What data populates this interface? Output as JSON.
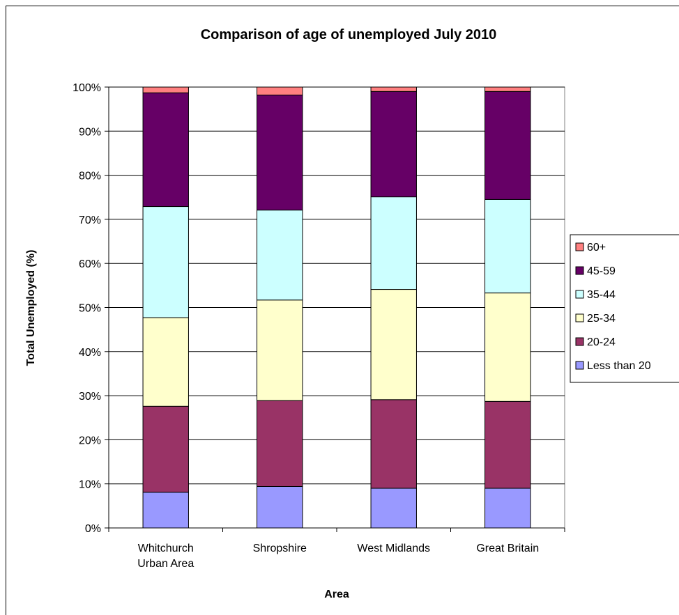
{
  "chart_data": {
    "type": "bar",
    "stacked": "percent",
    "title": "Comparison of age of unemployed July 2010",
    "xlabel": "Area",
    "ylabel": "Total Unemployed (%)",
    "categories": [
      [
        "Whitchurch",
        "Urban Area"
      ],
      [
        "Shropshire"
      ],
      [
        "West Midlands"
      ],
      [
        "Great Britain"
      ]
    ],
    "ylim": [
      0,
      100
    ],
    "yticks": [
      "0%",
      "10%",
      "20%",
      "30%",
      "40%",
      "50%",
      "60%",
      "70%",
      "80%",
      "90%",
      "100%"
    ],
    "grid": true,
    "legend_position": "right",
    "series": [
      {
        "name": "Less than 20",
        "color": "#9999ff",
        "values": [
          8.1,
          9.4,
          9.0,
          9.0
        ]
      },
      {
        "name": "20-24",
        "color": "#993366",
        "values": [
          19.5,
          19.5,
          20.1,
          19.7
        ]
      },
      {
        "name": "25-34",
        "color": "#ffffcc",
        "values": [
          20.1,
          22.8,
          25.0,
          24.6
        ]
      },
      {
        "name": "35-44",
        "color": "#ccffff",
        "values": [
          25.2,
          20.4,
          21.0,
          21.2
        ]
      },
      {
        "name": "45-59",
        "color": "#660066",
        "values": [
          25.8,
          26.1,
          23.9,
          24.5
        ]
      },
      {
        "name": "60+",
        "color": "#ff8080",
        "values": [
          1.3,
          1.8,
          1.0,
          1.0
        ]
      }
    ]
  }
}
